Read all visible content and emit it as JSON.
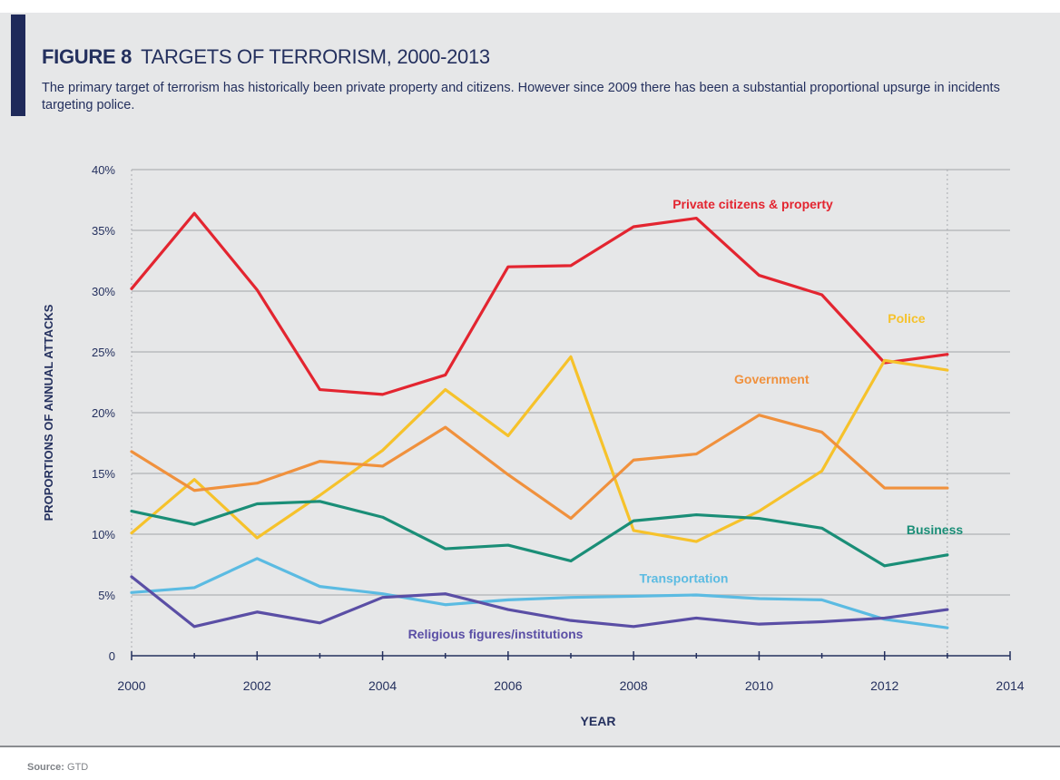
{
  "figure": {
    "label": "FIGURE 8",
    "title": "TARGETS OF TERRORISM, 2000-2013",
    "subtitle": "The primary target of terrorism has historically been private property and citizens. However since 2009 there has been a substantial proportional upsurge in incidents targeting police."
  },
  "source": {
    "label": "Source:",
    "value": "GTD"
  },
  "colors": {
    "background": "#e6e7e8",
    "title": "#24305e",
    "grid": "#b9bbbe",
    "axis": "#24305e"
  },
  "chart_data": {
    "type": "line",
    "xlabel": "YEAR",
    "ylabel": "PROPORTIONS OF ANNUAL ATTACKS",
    "xlim": [
      2000,
      2014
    ],
    "ylim": [
      0,
      40
    ],
    "xticks": [
      2000,
      2002,
      2004,
      2006,
      2008,
      2010,
      2012,
      2014
    ],
    "x_tick_labels": [
      "2000",
      "2002",
      "2004",
      "2006",
      "2008",
      "2010",
      "2012",
      "2014"
    ],
    "yticks": [
      0,
      5,
      10,
      15,
      20,
      25,
      30,
      35,
      40
    ],
    "y_tick_labels": [
      "0",
      "5%",
      "10%",
      "15%",
      "20%",
      "25%",
      "30%",
      "35%",
      "40%"
    ],
    "grid": true,
    "x": [
      2000,
      2001,
      2002,
      2003,
      2004,
      2005,
      2006,
      2007,
      2008,
      2009,
      2010,
      2011,
      2012,
      2013
    ],
    "series": [
      {
        "name": "Private citizens & property",
        "color": "#e32530",
        "label_x": 2009.9,
        "label_y": 36.8,
        "values": [
          30.2,
          36.4,
          30.1,
          21.9,
          21.5,
          23.1,
          32.0,
          32.1,
          35.3,
          36.0,
          31.3,
          29.7,
          24.1,
          24.8
        ]
      },
      {
        "name": "Police",
        "color": "#f6c22b",
        "label_x": 2012.35,
        "label_y": 27.4,
        "values": [
          10.1,
          14.5,
          9.7,
          13.2,
          16.9,
          21.9,
          18.1,
          24.6,
          10.3,
          9.4,
          11.9,
          15.2,
          24.3,
          23.5
        ]
      },
      {
        "name": "Government",
        "color": "#f0913d",
        "label_x": 2010.2,
        "label_y": 22.4,
        "values": [
          16.8,
          13.6,
          14.2,
          16.0,
          15.6,
          18.8,
          14.9,
          11.3,
          16.1,
          16.6,
          19.8,
          18.4,
          13.8,
          13.8
        ]
      },
      {
        "name": "Business",
        "color": "#1a8e77",
        "label_x": 2012.8,
        "label_y": 10.0,
        "values": [
          11.9,
          10.8,
          12.5,
          12.7,
          11.4,
          8.8,
          9.1,
          7.8,
          11.1,
          11.6,
          11.3,
          10.5,
          7.4,
          8.3
        ]
      },
      {
        "name": "Transportation",
        "color": "#5bbbe2",
        "label_x": 2008.8,
        "label_y": 6.0,
        "values": [
          5.2,
          5.6,
          8.0,
          5.7,
          5.1,
          4.2,
          4.6,
          4.8,
          4.9,
          5.0,
          4.7,
          4.6,
          3.0,
          2.3
        ]
      },
      {
        "name": "Religious figures/institutions",
        "color": "#5a4ea5",
        "label_x": 2005.8,
        "label_y": 1.4,
        "values": [
          6.5,
          2.4,
          3.6,
          2.7,
          4.8,
          5.1,
          3.8,
          2.9,
          2.4,
          3.1,
          2.6,
          2.8,
          3.1,
          3.8
        ]
      }
    ]
  }
}
